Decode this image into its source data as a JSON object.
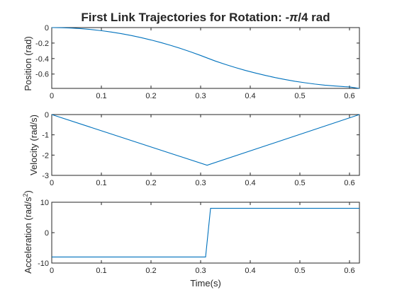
{
  "chart_data": {
    "type": "line",
    "title_prefix": "First Link Trajectories for Rotation: -",
    "title_symbol": "π",
    "title_suffix": "/4 rad",
    "xlabel": "Time(s)",
    "line_color": "#0072BD",
    "grid": false,
    "subplots": [
      {
        "name": "position",
        "ylabel": "Position (rad)",
        "xlim": [
          0,
          0.62
        ],
        "ylim": [
          -0.785,
          0
        ],
        "xticks": [
          0,
          0.1,
          0.2,
          0.3,
          0.4,
          0.5,
          0.6
        ],
        "yticks": [
          0,
          -0.2,
          -0.4,
          -0.6
        ],
        "x": [
          0,
          0.02,
          0.04,
          0.06,
          0.08,
          0.1,
          0.12,
          0.14,
          0.16,
          0.18,
          0.2,
          0.22,
          0.24,
          0.26,
          0.28,
          0.3,
          0.313,
          0.33,
          0.35,
          0.37,
          0.39,
          0.41,
          0.43,
          0.45,
          0.47,
          0.49,
          0.51,
          0.53,
          0.55,
          0.57,
          0.59,
          0.6,
          0.62
        ],
        "y": [
          0,
          -0.0016,
          -0.0064,
          -0.0144,
          -0.0256,
          -0.04,
          -0.0576,
          -0.0784,
          -0.1024,
          -0.1296,
          -0.16,
          -0.1936,
          -0.2304,
          -0.2704,
          -0.3136,
          -0.36,
          -0.392,
          -0.433,
          -0.476,
          -0.516,
          -0.553,
          -0.586,
          -0.617,
          -0.645,
          -0.67,
          -0.693,
          -0.712,
          -0.729,
          -0.743,
          -0.754,
          -0.763,
          -0.766,
          -0.785
        ]
      },
      {
        "name": "velocity",
        "ylabel": "Velocity (rad/s)",
        "xlim": [
          0,
          0.62
        ],
        "ylim": [
          -3,
          0
        ],
        "xticks": [
          0,
          0.1,
          0.2,
          0.3,
          0.4,
          0.5,
          0.6
        ],
        "yticks": [
          0,
          -1,
          -2,
          -3
        ],
        "x": [
          0,
          0.313,
          0.62
        ],
        "y": [
          0,
          -2.5,
          0
        ]
      },
      {
        "name": "acceleration",
        "ylabel_main": "Acceleration (rad/s",
        "ylabel_sup": "2",
        "ylabel_end": ")",
        "xlim": [
          0,
          0.62
        ],
        "ylim": [
          -10,
          10
        ],
        "xticks": [
          0,
          0.1,
          0.2,
          0.3,
          0.4,
          0.5,
          0.6
        ],
        "yticks": [
          10,
          0,
          -10
        ],
        "x": [
          0,
          0.31,
          0.32,
          0.62
        ],
        "y": [
          -8,
          -8,
          8,
          8
        ]
      }
    ]
  }
}
